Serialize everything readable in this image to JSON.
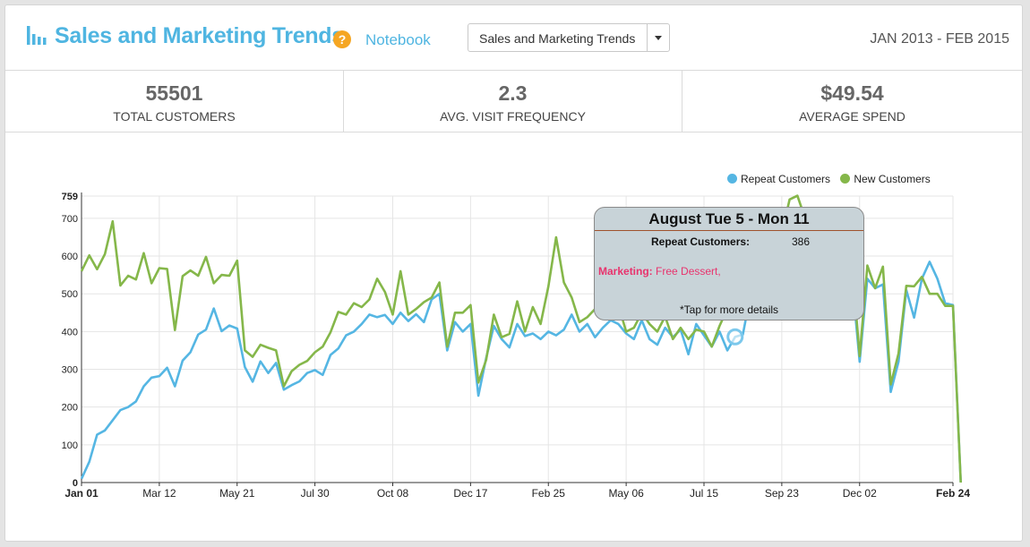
{
  "header": {
    "title": "Sales and Marketing Trends",
    "notebook_link": "Notebook",
    "report_select": "Sales and Marketing Trends",
    "date_range": "JAN 2013 - FEB 2015"
  },
  "stats": [
    {
      "value": "55501",
      "label": "TOTAL CUSTOMERS"
    },
    {
      "value": "2.3",
      "label": "AVG. VISIT FREQUENCY"
    },
    {
      "value": "$49.54",
      "label": "AVERAGE SPEND"
    }
  ],
  "colors": {
    "accent": "#4fb5e1",
    "repeat": "#55b6e3",
    "new": "#85b74a",
    "marketing": "#e8336d"
  },
  "tooltip": {
    "title": "August Tue 5 - Mon 11",
    "metric_label": "Repeat Customers:",
    "metric_value": "386",
    "marketing_label": "Marketing:",
    "marketing_value": " Free Dessert,",
    "footer": "*Tap for more details"
  },
  "chart_data": {
    "type": "line",
    "title": "",
    "xlabel": "",
    "ylabel": "",
    "ylim": [
      0,
      759
    ],
    "y_ticks": [
      0,
      100,
      200,
      300,
      400,
      500,
      600,
      700,
      759
    ],
    "x_ticks": [
      "Jan 01",
      "Mar 12",
      "May 21",
      "Jul 30",
      "Oct 08",
      "Dec 17",
      "Feb 25",
      "May 06",
      "Jul 15",
      "Sep 23",
      "Dec 02",
      "Feb 24"
    ],
    "x_tick_weeks": [
      0,
      10,
      20,
      30,
      40,
      50,
      60,
      70,
      80,
      90,
      100,
      112
    ],
    "legend": "top-right",
    "grid": true,
    "highlight_week": 84,
    "series": [
      {
        "name": "Repeat Customers",
        "color": "#55b6e3",
        "values": [
          10,
          55,
          127,
          138,
          165,
          192,
          200,
          215,
          255,
          278,
          282,
          304,
          255,
          323,
          345,
          392,
          405,
          461,
          401,
          416,
          408,
          306,
          267,
          321,
          290,
          317,
          246,
          258,
          268,
          290,
          298,
          285,
          338,
          355,
          390,
          400,
          420,
          445,
          438,
          444,
          420,
          450,
          428,
          446,
          425,
          485,
          500,
          350,
          425,
          400,
          420,
          230,
          330,
          415,
          380,
          358,
          420,
          388,
          395,
          380,
          400,
          390,
          405,
          445,
          400,
          420,
          385,
          410,
          430,
          420,
          395,
          380,
          430,
          380,
          365,
          410,
          385,
          405,
          340,
          420,
          390,
          360,
          400,
          350,
          386,
          392,
          500,
          505,
          530,
          600,
          550,
          515,
          520,
          480,
          540,
          445,
          480,
          510,
          500,
          545,
          320,
          540,
          515,
          525,
          240,
          320,
          510,
          437,
          540,
          585,
          540,
          475,
          470,
          0
        ]
      },
      {
        "name": "New Customers",
        "color": "#85b74a",
        "values": [
          560,
          602,
          565,
          605,
          692,
          522,
          548,
          538,
          608,
          528,
          568,
          566,
          404,
          547,
          562,
          548,
          598,
          528,
          550,
          548,
          588,
          350,
          333,
          365,
          357,
          350,
          255,
          295,
          312,
          322,
          345,
          360,
          398,
          452,
          445,
          475,
          465,
          485,
          540,
          505,
          445,
          560,
          445,
          460,
          478,
          490,
          530,
          360,
          450,
          450,
          470,
          265,
          325,
          445,
          385,
          394,
          480,
          400,
          465,
          420,
          520,
          650,
          530,
          490,
          425,
          438,
          460,
          450,
          470,
          470,
          400,
          410,
          450,
          420,
          400,
          440,
          380,
          410,
          380,
          405,
          400,
          360,
          415,
          460,
          480,
          500,
          520,
          510,
          540,
          630,
          660,
          750,
          760,
          700,
          600,
          575,
          570,
          545,
          560,
          585,
          335,
          575,
          515,
          572,
          260,
          342,
          521,
          520,
          545,
          500,
          500,
          468,
          468,
          0
        ]
      }
    ]
  }
}
